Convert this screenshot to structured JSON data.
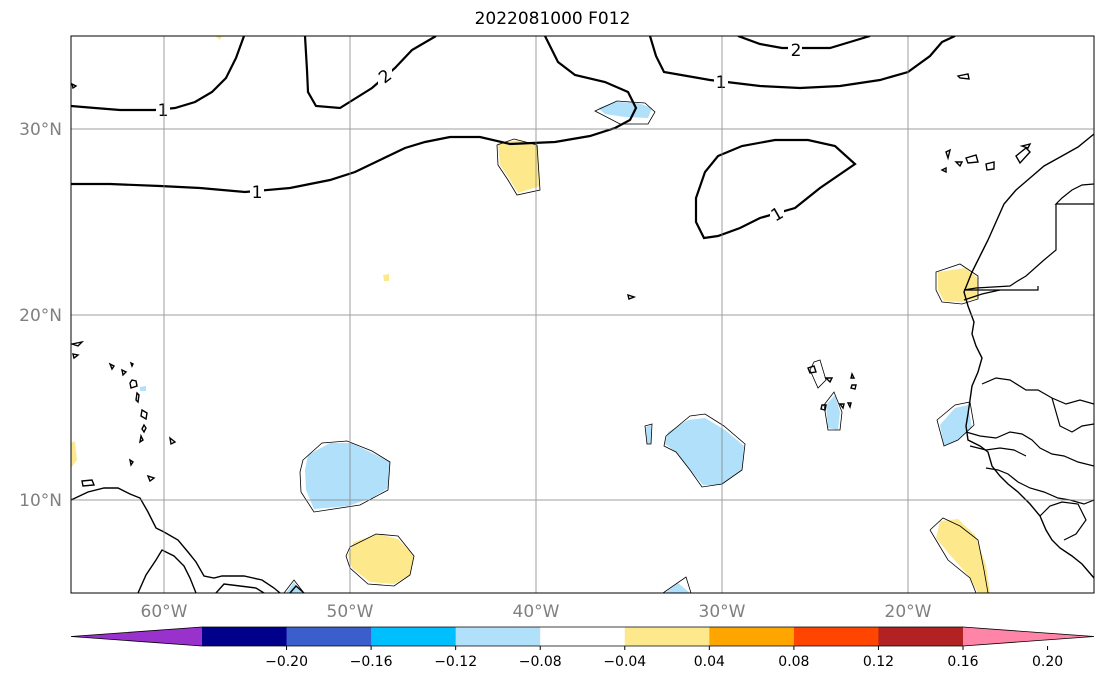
{
  "title": "2022081000 F012",
  "map": {
    "projection": "PlateCarree",
    "lon_range": [
      -65,
      -10
    ],
    "lat_range": [
      5,
      35
    ],
    "lon_ticks": [
      "60°W",
      "50°W",
      "40°W",
      "30°W",
      "20°W"
    ],
    "lat_ticks": [
      "30°N",
      "20°N",
      "10°N"
    ],
    "grid": true,
    "contour_labels": [
      "1",
      "2",
      "2",
      "1",
      "1",
      "1"
    ]
  },
  "colorbar": {
    "orientation": "horizontal",
    "extend": "both",
    "ticks": [
      "−0.20",
      "−0.16",
      "−0.12",
      "−0.08",
      "−0.04",
      "0.04",
      "0.08",
      "0.12",
      "0.16",
      "0.20"
    ],
    "colors": [
      "#9932cc",
      "#00008b",
      "#3a5fcd",
      "#00bfff",
      "#b0e0fa",
      "#ffffff",
      "#fde98c",
      "#ffa500",
      "#ff4500",
      "#b22222",
      "#ff85a8"
    ]
  }
}
